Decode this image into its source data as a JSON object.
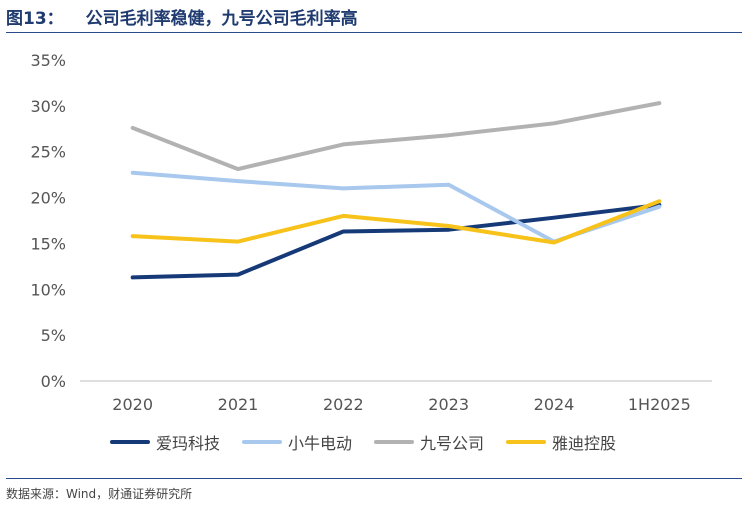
{
  "header": {
    "figure_label": "图13：",
    "title": "公司毛利率稳健，九号公司毛利率高"
  },
  "source": "数据来源：Wind，财通证券研究所",
  "colors": {
    "accent": "#1f3b70",
    "rule": "#2a4a8a"
  },
  "chart_data": {
    "type": "line",
    "title": "公司毛利率稳健，九号公司毛利率高",
    "categories": [
      "2020",
      "2021",
      "2022",
      "2023",
      "2024",
      "1H2025"
    ],
    "yticks": [
      "0%",
      "5%",
      "10%",
      "15%",
      "20%",
      "25%",
      "30%",
      "35%"
    ],
    "ylim": [
      0,
      35
    ],
    "grid": false,
    "legend_position": "bottom",
    "series": [
      {
        "name": "爱玛科技",
        "color": "#163a78",
        "values": [
          11.3,
          11.6,
          16.3,
          16.5,
          17.8,
          19.2
        ]
      },
      {
        "name": "小牛电动",
        "color": "#a8c8ee",
        "values": [
          22.7,
          21.8,
          21.0,
          21.4,
          15.2,
          19.0
        ]
      },
      {
        "name": "九号公司",
        "color": "#b2b2b2",
        "values": [
          27.6,
          23.1,
          25.8,
          26.8,
          28.1,
          30.3
        ]
      },
      {
        "name": "雅迪控股",
        "color": "#f7c21a",
        "values": [
          15.8,
          15.2,
          18.0,
          16.9,
          15.1,
          19.6
        ]
      }
    ]
  }
}
